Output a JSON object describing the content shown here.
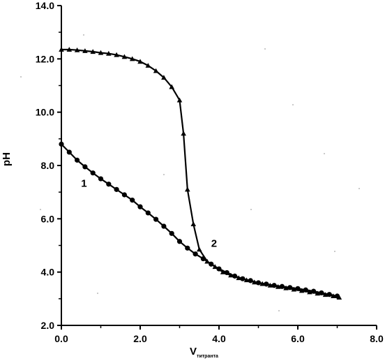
{
  "chart_data": {
    "type": "line",
    "title": "",
    "xlabel_main": "V",
    "xlabel_sub": "титранта",
    "ylabel": "pH",
    "xlim": [
      0.0,
      8.0
    ],
    "ylim": [
      2.0,
      14.0
    ],
    "x_ticks": [
      "0.0",
      "2.0",
      "4.0",
      "6.0",
      "8.0"
    ],
    "y_ticks": [
      "2.0",
      "4.0",
      "6.0",
      "8.0",
      "10.0",
      "12.0",
      "14.0"
    ],
    "grid": false,
    "series": [
      {
        "name": "1",
        "marker": "circle",
        "x": [
          0.0,
          0.2,
          0.4,
          0.6,
          0.8,
          1.0,
          1.2,
          1.4,
          1.6,
          1.8,
          2.0,
          2.2,
          2.4,
          2.6,
          2.8,
          3.0,
          3.2,
          3.4,
          3.6,
          3.8,
          4.0,
          4.2,
          4.4,
          4.6,
          4.8,
          5.0,
          5.2,
          5.4,
          5.6,
          5.8,
          6.0,
          6.2,
          6.4,
          6.6,
          6.8,
          7.0
        ],
        "y": [
          8.8,
          8.5,
          8.2,
          7.95,
          7.72,
          7.5,
          7.3,
          7.1,
          6.9,
          6.7,
          6.45,
          6.22,
          5.98,
          5.72,
          5.45,
          5.15,
          4.9,
          4.68,
          4.5,
          4.3,
          4.12,
          3.98,
          3.85,
          3.75,
          3.68,
          3.6,
          3.55,
          3.5,
          3.46,
          3.42,
          3.38,
          3.33,
          3.28,
          3.22,
          3.16,
          3.1
        ]
      },
      {
        "name": "2",
        "marker": "triangle",
        "x": [
          0.0,
          0.2,
          0.4,
          0.6,
          0.8,
          1.0,
          1.2,
          1.4,
          1.6,
          1.8,
          2.0,
          2.2,
          2.4,
          2.6,
          2.8,
          3.0,
          3.1,
          3.2,
          3.35,
          3.5,
          3.7,
          3.9,
          4.1,
          4.3,
          4.5,
          4.7,
          4.9,
          5.1,
          5.3,
          5.5,
          5.7,
          5.9,
          6.1,
          6.3,
          6.5,
          6.7,
          6.9,
          7.05
        ],
        "y": [
          12.35,
          12.35,
          12.33,
          12.3,
          12.27,
          12.23,
          12.2,
          12.15,
          12.08,
          12.0,
          11.9,
          11.75,
          11.55,
          11.3,
          10.95,
          10.45,
          9.2,
          7.1,
          5.8,
          4.85,
          4.4,
          4.2,
          4.0,
          3.88,
          3.78,
          3.7,
          3.62,
          3.56,
          3.5,
          3.45,
          3.4,
          3.35,
          3.3,
          3.25,
          3.2,
          3.15,
          3.1,
          3.05
        ]
      }
    ],
    "annotations": [
      {
        "text": "1",
        "x": 0.5,
        "y": 7.2
      },
      {
        "text": "2",
        "x": 3.8,
        "y": 4.95
      }
    ]
  }
}
